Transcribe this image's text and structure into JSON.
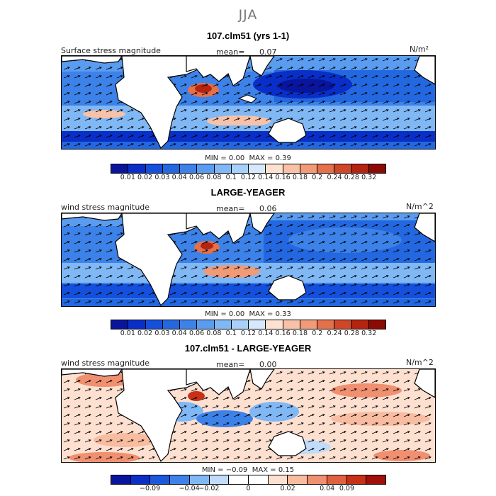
{
  "season": "JJA",
  "panels": [
    {
      "title": "107.clm51 (yrs 1-1)",
      "left_label": "Surface stress magnitude",
      "mean_label": "mean=",
      "mean_value": "0.07",
      "units": "N/m²",
      "min_label": "MIN =",
      "min_value": "0.00",
      "max_label": "MAX =",
      "max_value": "0.39",
      "colorbar_ticks": [
        "0.01",
        "0.02",
        "0.03",
        "0.04",
        "0.06",
        "0.08",
        "0.1",
        "0.12",
        "0.14",
        "0.16",
        "0.18",
        "0.2",
        "0.24",
        "0.28",
        "0.32"
      ]
    },
    {
      "title": "LARGE-YEAGER",
      "left_label": "wind stress magnitude",
      "mean_label": "mean=",
      "mean_value": "0.06",
      "units": "N/m^2",
      "min_label": "MIN =",
      "min_value": "0.00",
      "max_label": "MAX =",
      "max_value": "0.33",
      "colorbar_ticks": [
        "0.01",
        "0.02",
        "0.03",
        "0.04",
        "0.06",
        "0.08",
        "0.1",
        "0.12",
        "0.14",
        "0.16",
        "0.18",
        "0.2",
        "0.24",
        "0.28",
        "0.32"
      ]
    },
    {
      "title": "107.clm51 - LARGE-YEAGER",
      "left_label": "wind stress magnitude",
      "mean_label": "mean=",
      "mean_value": "0.00",
      "units": "N/m^2",
      "min_label": "MIN =",
      "min_value": "−0.09",
      "max_label": "MAX =",
      "max_value": "0.15",
      "colorbar_ticks": [
        "−0.09",
        "−0.04",
        "−0.02",
        "0",
        "0.02",
        "0.04",
        "0.09"
      ]
    }
  ],
  "colors": {
    "abs_scale": [
      "#08159c",
      "#0a2fc8",
      "#1450dc",
      "#2368e0",
      "#3c82e8",
      "#5a9cf0",
      "#80b8f6",
      "#a8d0fa",
      "#d6e8fc",
      "#fde2d2",
      "#f8c2a8",
      "#f09a78",
      "#e4704c",
      "#d04628",
      "#b42410",
      "#8c0a04"
    ],
    "diff_scale": [
      "#08159c",
      "#0a2fc8",
      "#1c58dc",
      "#3c82e8",
      "#80b8f6",
      "#c0dcfa",
      "#ffffff",
      "#ffffff",
      "#fde0d0",
      "#f8bca0",
      "#f09070",
      "#e06040",
      "#c83018",
      "#a01008"
    ],
    "land": "#ffffff",
    "coast": "#000000"
  }
}
